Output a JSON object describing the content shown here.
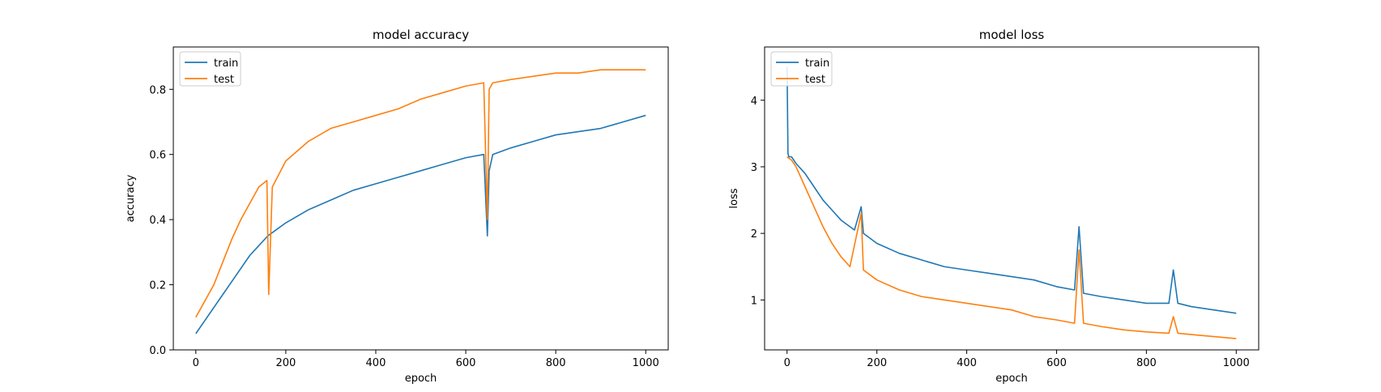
{
  "chart_data": [
    {
      "type": "line",
      "title": "model accuracy",
      "xlabel": "epoch",
      "ylabel": "accuracy",
      "xlim": [
        -50,
        1050
      ],
      "ylim": [
        0.0,
        0.93
      ],
      "xticks": [
        0,
        200,
        400,
        600,
        800,
        1000
      ],
      "yticks": [
        0.0,
        0.2,
        0.4,
        0.6,
        0.8
      ],
      "ytick_labels": [
        "0.0",
        "0.2",
        "0.4",
        "0.6",
        "0.8"
      ],
      "legend": "upper left",
      "series": [
        {
          "name": "train",
          "color": "#1f77b4",
          "x": [
            0,
            20,
            40,
            60,
            80,
            100,
            120,
            140,
            160,
            180,
            200,
            250,
            300,
            350,
            400,
            450,
            500,
            550,
            600,
            640,
            648,
            652,
            660,
            700,
            750,
            800,
            850,
            900,
            950,
            1000
          ],
          "y": [
            0.05,
            0.09,
            0.13,
            0.17,
            0.21,
            0.25,
            0.29,
            0.32,
            0.35,
            0.37,
            0.39,
            0.43,
            0.46,
            0.49,
            0.51,
            0.53,
            0.55,
            0.57,
            0.59,
            0.6,
            0.35,
            0.55,
            0.6,
            0.62,
            0.64,
            0.66,
            0.67,
            0.68,
            0.7,
            0.72
          ]
        },
        {
          "name": "test",
          "color": "#ff7f0e",
          "x": [
            0,
            20,
            40,
            60,
            80,
            100,
            120,
            140,
            158,
            162,
            170,
            200,
            250,
            300,
            350,
            400,
            450,
            500,
            550,
            600,
            640,
            648,
            652,
            660,
            700,
            750,
            800,
            850,
            900,
            950,
            1000
          ],
          "y": [
            0.1,
            0.15,
            0.2,
            0.27,
            0.34,
            0.4,
            0.45,
            0.5,
            0.52,
            0.17,
            0.5,
            0.58,
            0.64,
            0.68,
            0.7,
            0.72,
            0.74,
            0.77,
            0.79,
            0.81,
            0.82,
            0.4,
            0.8,
            0.82,
            0.83,
            0.84,
            0.85,
            0.85,
            0.86,
            0.86,
            0.86
          ]
        }
      ]
    },
    {
      "type": "line",
      "title": "model loss",
      "xlabel": "epoch",
      "ylabel": "loss",
      "xlim": [
        -50,
        1050
      ],
      "ylim": [
        0.25,
        4.8
      ],
      "xticks": [
        0,
        200,
        400,
        600,
        800,
        1000
      ],
      "yticks": [
        1,
        2,
        3,
        4
      ],
      "ytick_labels": [
        "1",
        "2",
        "3",
        "4"
      ],
      "legend": "upper left",
      "series": [
        {
          "name": "train",
          "color": "#1f77b4",
          "x": [
            0,
            2,
            4,
            10,
            20,
            40,
            60,
            80,
            100,
            120,
            150,
            165,
            170,
            200,
            250,
            300,
            350,
            400,
            450,
            500,
            550,
            600,
            640,
            650,
            660,
            700,
            750,
            800,
            850,
            860,
            870,
            900,
            950,
            1000
          ],
          "y": [
            4.5,
            3.2,
            3.15,
            3.15,
            3.05,
            2.9,
            2.7,
            2.5,
            2.35,
            2.2,
            2.05,
            2.4,
            2.0,
            1.85,
            1.7,
            1.6,
            1.5,
            1.45,
            1.4,
            1.35,
            1.3,
            1.2,
            1.15,
            2.1,
            1.1,
            1.05,
            1.0,
            0.95,
            0.95,
            1.45,
            0.95,
            0.9,
            0.85,
            0.8
          ]
        },
        {
          "name": "test",
          "color": "#ff7f0e",
          "x": [
            0,
            10,
            20,
            40,
            60,
            80,
            100,
            120,
            140,
            165,
            170,
            200,
            250,
            300,
            350,
            400,
            450,
            500,
            550,
            600,
            640,
            650,
            660,
            700,
            750,
            800,
            850,
            860,
            870,
            900,
            950,
            1000
          ],
          "y": [
            3.15,
            3.1,
            3.0,
            2.7,
            2.4,
            2.1,
            1.85,
            1.65,
            1.5,
            2.3,
            1.45,
            1.3,
            1.15,
            1.05,
            1.0,
            0.95,
            0.9,
            0.85,
            0.75,
            0.7,
            0.65,
            1.75,
            0.65,
            0.6,
            0.55,
            0.52,
            0.5,
            0.75,
            0.5,
            0.48,
            0.45,
            0.42
          ]
        }
      ]
    }
  ]
}
